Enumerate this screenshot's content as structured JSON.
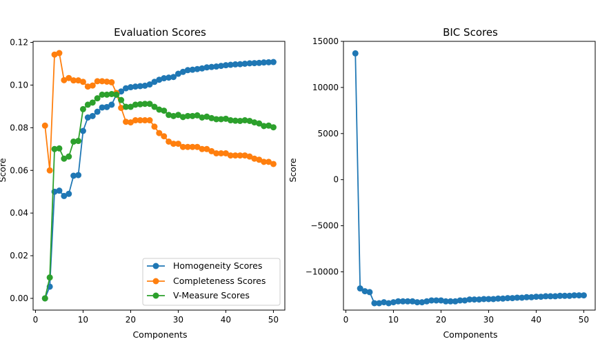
{
  "chart_data": [
    {
      "type": "line",
      "title": "Evaluation Scores",
      "xlabel": "Components",
      "ylabel": "Score",
      "xlim": [
        -0.5,
        52.4
      ],
      "ylim": [
        -0.0055,
        0.1205
      ],
      "xticks": [
        0,
        10,
        20,
        30,
        40,
        50
      ],
      "xtick_labels": [
        "0",
        "10",
        "20",
        "30",
        "40",
        "50"
      ],
      "yticks": [
        0.0,
        0.02,
        0.04,
        0.06,
        0.08,
        0.1,
        0.12
      ],
      "ytick_labels": [
        "0.00",
        "0.02",
        "0.04",
        "0.06",
        "0.08",
        "0.10",
        "0.12"
      ],
      "grid": false,
      "legend_position": "lower-right",
      "x": [
        2,
        3,
        4,
        5,
        6,
        7,
        8,
        9,
        10,
        11,
        12,
        13,
        14,
        15,
        16,
        17,
        18,
        19,
        20,
        21,
        22,
        23,
        24,
        25,
        26,
        27,
        28,
        29,
        30,
        31,
        32,
        33,
        34,
        35,
        36,
        37,
        38,
        39,
        40,
        41,
        42,
        43,
        44,
        45,
        46,
        47,
        48,
        49,
        50
      ],
      "series": [
        {
          "name": "Homogeneity Scores",
          "color": "#1f77b4",
          "values": [
            0.0,
            0.0055,
            0.05,
            0.0505,
            0.048,
            0.049,
            0.0575,
            0.0578,
            0.0785,
            0.0848,
            0.0855,
            0.0875,
            0.0895,
            0.0897,
            0.0908,
            0.0955,
            0.097,
            0.0985,
            0.099,
            0.0993,
            0.0995,
            0.0997,
            0.1003,
            0.1015,
            0.1025,
            0.1032,
            0.1035,
            0.1038,
            0.1053,
            0.1062,
            0.107,
            0.1072,
            0.1075,
            0.1078,
            0.1083,
            0.1085,
            0.1087,
            0.109,
            0.1093,
            0.1095,
            0.1097,
            0.1098,
            0.11,
            0.1102,
            0.1103,
            0.1104,
            0.1106,
            0.1107,
            0.1108
          ]
        },
        {
          "name": "Completeness Scores",
          "color": "#ff7f0e",
          "values": [
            0.081,
            0.06,
            0.1143,
            0.115,
            0.1023,
            0.1033,
            0.1022,
            0.1022,
            0.1015,
            0.0993,
            0.0998,
            0.1018,
            0.1018,
            0.1016,
            0.1013,
            0.0963,
            0.0893,
            0.0828,
            0.0825,
            0.0835,
            0.0835,
            0.0835,
            0.0835,
            0.0805,
            0.0775,
            0.076,
            0.0735,
            0.0725,
            0.0725,
            0.071,
            0.071,
            0.071,
            0.071,
            0.07,
            0.07,
            0.069,
            0.068,
            0.068,
            0.068,
            0.067,
            0.067,
            0.067,
            0.067,
            0.0665,
            0.0655,
            0.065,
            0.064,
            0.064,
            0.063
          ]
        },
        {
          "name": "V-Measure Scores",
          "color": "#2ca02c",
          "values": [
            0.0,
            0.0098,
            0.07,
            0.0703,
            0.0655,
            0.0665,
            0.0735,
            0.0738,
            0.0887,
            0.0908,
            0.0918,
            0.0938,
            0.0955,
            0.0955,
            0.0958,
            0.0955,
            0.093,
            0.0898,
            0.0898,
            0.0908,
            0.091,
            0.0912,
            0.0912,
            0.0898,
            0.0885,
            0.088,
            0.086,
            0.0855,
            0.086,
            0.085,
            0.0855,
            0.0855,
            0.0858,
            0.0848,
            0.0852,
            0.0845,
            0.084,
            0.084,
            0.0842,
            0.0835,
            0.0833,
            0.0832,
            0.0835,
            0.0832,
            0.0825,
            0.082,
            0.0808,
            0.081,
            0.0802
          ]
        }
      ]
    },
    {
      "type": "line",
      "title": "BIC Scores",
      "xlabel": "Components",
      "ylabel": "Score",
      "xlim": [
        -0.5,
        52.4
      ],
      "ylim": [
        -14150,
        15000
      ],
      "xticks": [
        0,
        10,
        20,
        30,
        40,
        50
      ],
      "xtick_labels": [
        "0",
        "10",
        "20",
        "30",
        "40",
        "50"
      ],
      "yticks": [
        -10000,
        -5000,
        0,
        5000,
        10000,
        15000
      ],
      "ytick_labels": [
        "−10000",
        "−5000",
        "0",
        "5000",
        "10000",
        "15000"
      ],
      "grid": false,
      "x": [
        2,
        3,
        4,
        5,
        6,
        7,
        8,
        9,
        10,
        11,
        12,
        13,
        14,
        15,
        16,
        17,
        18,
        19,
        20,
        21,
        22,
        23,
        24,
        25,
        26,
        27,
        28,
        29,
        30,
        31,
        32,
        33,
        34,
        35,
        36,
        37,
        38,
        39,
        40,
        41,
        42,
        43,
        44,
        45,
        46,
        47,
        48,
        49,
        50
      ],
      "series": [
        {
          "color": "#1f77b4",
          "values": [
            13700,
            -11800,
            -12100,
            -12200,
            -13400,
            -13400,
            -13300,
            -13400,
            -13300,
            -13200,
            -13200,
            -13200,
            -13200,
            -13300,
            -13300,
            -13200,
            -13100,
            -13100,
            -13100,
            -13200,
            -13200,
            -13200,
            -13100,
            -13100,
            -13000,
            -13000,
            -13000,
            -12950,
            -12950,
            -12950,
            -12900,
            -12900,
            -12850,
            -12850,
            -12800,
            -12800,
            -12750,
            -12750,
            -12700,
            -12700,
            -12650,
            -12650,
            -12650,
            -12600,
            -12600,
            -12600,
            -12550,
            -12550,
            -12550
          ]
        }
      ]
    }
  ]
}
